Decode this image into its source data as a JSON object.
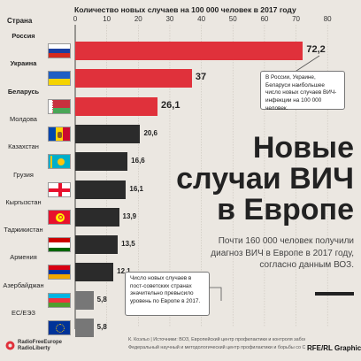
{
  "chart_data": {
    "type": "bar",
    "orientation": "horizontal",
    "title": "Количество новых случаев на 100 000 человек в 2017 году",
    "category_header": "Страна",
    "xlim": [
      0,
      80
    ],
    "xticks": [
      "0",
      "10",
      "20",
      "30",
      "40",
      "50",
      "60",
      "70",
      "80"
    ],
    "grid": true,
    "categories": [
      "Россия",
      "Украина",
      "Беларусь",
      "Молдова",
      "Казахстан",
      "Грузия",
      "Кыргызстан",
      "Таджикистан",
      "Армения",
      "Азербайджан",
      "ЕС/ЕЭЗ"
    ],
    "value_labels": [
      "72,2",
      "37",
      "26,1",
      "20,6",
      "16,6",
      "16,1",
      "13,9",
      "13,5",
      "12,1",
      "5,8",
      "5,8"
    ],
    "values": [
      72.2,
      37,
      26.1,
      20.6,
      16.6,
      16.1,
      13.9,
      13.5,
      12.1,
      5.8,
      5.8
    ],
    "highlighted": [
      true,
      true,
      true,
      false,
      false,
      false,
      false,
      false,
      false,
      false,
      false
    ]
  },
  "colors": {
    "highlight": "#e0313b",
    "normal": "#2b2b2b",
    "gray": "#777777",
    "background": "#ebe7e1",
    "grid": "#c9c3ba"
  },
  "flags": [
    "russia-flag-icon",
    "ukraine-flag-icon",
    "belarus-flag-icon",
    "moldova-flag-icon",
    "kazakhstan-flag-icon",
    "georgia-flag-icon",
    "kyrgyzstan-flag-icon",
    "tajikistan-flag-icon",
    "armenia-flag-icon",
    "azerbaijan-flag-icon",
    "eu-flag-icon"
  ],
  "callouts": {
    "top": "В России, Украине, Беларуси наибольшее число новых случаев ВИЧ-инфекции на 100 000 человек.",
    "bottom": "Число новых случаев в пост-советских странах значительно превысило уровень по Европе в 2017."
  },
  "headline": {
    "title_line1": "Новые",
    "title_line2": "случаи ВИЧ",
    "title_line3": "в Европе",
    "subtitle": "Почти 160 000 человек получили диагноз ВИЧ в Европе в 2017 году, согласно данным ВОЗ."
  },
  "footer": {
    "logo_line1": "RadioFreeEurope",
    "logo_line2": "RadioLiberty",
    "source_line1": "К. Коэльо | Источники: ВОЗ, Европейский центр профилактики и контроля заболеваний,",
    "source_line2": "Федеральный научный и методологический центр профилактики и борьбы со СПИДом",
    "credit": "RFE/RL Graphics"
  }
}
